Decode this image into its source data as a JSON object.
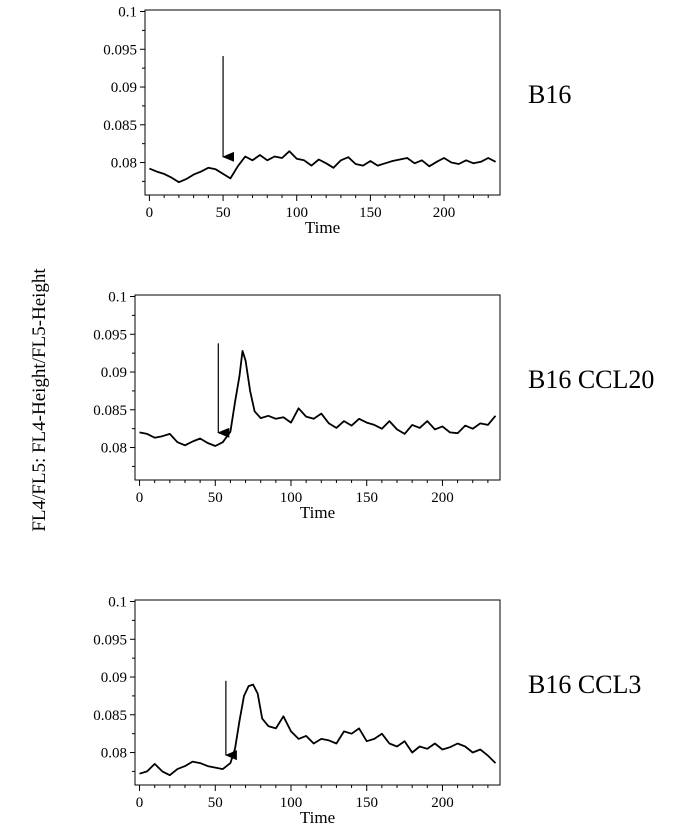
{
  "ylabel": "FL4/FL5: FL4-Height/FL5-Height",
  "line_color": "#000000",
  "chart_data": [
    {
      "type": "line",
      "panel_label": "B16",
      "xlabel": "Time",
      "ylabel": "FL4/FL5: FL4-Height/FL5-Height",
      "xlim": [
        -3,
        238
      ],
      "ylim": [
        0.0757,
        0.1002
      ],
      "xticks": [
        0,
        50,
        100,
        150,
        200
      ],
      "yticks": [
        0.08,
        0.085,
        0.09,
        0.095,
        0.1
      ],
      "ytick_labels": [
        "0.08",
        "0.085",
        "0.09",
        "0.095",
        "0.1"
      ],
      "grid": false,
      "arrow": {
        "x": 50,
        "y_top": 0.0941,
        "y_tip": 0.0793
      },
      "x": [
        0,
        5,
        10,
        15,
        20,
        25,
        30,
        35,
        40,
        45,
        50,
        55,
        60,
        65,
        70,
        75,
        80,
        85,
        90,
        95,
        100,
        105,
        110,
        115,
        120,
        125,
        130,
        135,
        140,
        145,
        150,
        155,
        160,
        165,
        170,
        175,
        180,
        185,
        190,
        195,
        200,
        205,
        210,
        215,
        220,
        225,
        230,
        235
      ],
      "y": [
        0.0792,
        0.0788,
        0.0785,
        0.078,
        0.0774,
        0.0778,
        0.0784,
        0.0788,
        0.0793,
        0.0791,
        0.0785,
        0.0779,
        0.0795,
        0.0808,
        0.0803,
        0.081,
        0.0803,
        0.0808,
        0.0806,
        0.0815,
        0.0805,
        0.0803,
        0.0796,
        0.0804,
        0.0799,
        0.0793,
        0.0803,
        0.0807,
        0.0798,
        0.0796,
        0.0802,
        0.0796,
        0.0799,
        0.0802,
        0.0804,
        0.0806,
        0.0799,
        0.0803,
        0.0795,
        0.0801,
        0.0806,
        0.08,
        0.0798,
        0.0803,
        0.0799,
        0.0801,
        0.0806,
        0.0801
      ]
    },
    {
      "type": "line",
      "panel_label": "B16 CCL20",
      "xlabel": "Time",
      "ylabel": "FL4/FL5: FL4-Height/FL5-Height",
      "xlim": [
        -3,
        238
      ],
      "ylim": [
        0.0757,
        0.1002
      ],
      "xticks": [
        0,
        50,
        100,
        150,
        200
      ],
      "yticks": [
        0.08,
        0.085,
        0.09,
        0.095,
        0.1
      ],
      "ytick_labels": [
        "0.08",
        "0.085",
        "0.09",
        "0.095",
        "0.1"
      ],
      "grid": false,
      "arrow": {
        "x": 52,
        "y_top": 0.0938,
        "y_tip": 0.0805
      },
      "x": [
        0,
        5,
        10,
        15,
        20,
        25,
        30,
        35,
        40,
        45,
        50,
        55,
        60,
        63,
        66,
        68,
        70,
        73,
        76,
        80,
        85,
        90,
        95,
        100,
        105,
        110,
        115,
        120,
        125,
        130,
        135,
        140,
        145,
        150,
        155,
        160,
        165,
        170,
        175,
        180,
        185,
        190,
        195,
        200,
        205,
        210,
        215,
        220,
        225,
        230,
        235
      ],
      "y": [
        0.082,
        0.0818,
        0.0813,
        0.0815,
        0.0818,
        0.0807,
        0.0803,
        0.0808,
        0.0812,
        0.0806,
        0.0802,
        0.0807,
        0.0821,
        0.086,
        0.0895,
        0.0928,
        0.0915,
        0.0875,
        0.0848,
        0.0839,
        0.0842,
        0.0838,
        0.084,
        0.0833,
        0.0852,
        0.0841,
        0.0838,
        0.0845,
        0.0832,
        0.0826,
        0.0835,
        0.0829,
        0.0838,
        0.0833,
        0.083,
        0.0825,
        0.0835,
        0.0824,
        0.0818,
        0.083,
        0.0826,
        0.0835,
        0.0824,
        0.0828,
        0.082,
        0.0819,
        0.0829,
        0.0825,
        0.0832,
        0.083,
        0.0842
      ]
    },
    {
      "type": "line",
      "panel_label": "B16 CCL3",
      "xlabel": "Time",
      "ylabel": "FL4/FL5: FL4-Height/FL5-Height",
      "xlim": [
        -3,
        238
      ],
      "ylim": [
        0.0757,
        0.1002
      ],
      "xticks": [
        0,
        50,
        100,
        150,
        200
      ],
      "yticks": [
        0.08,
        0.085,
        0.09,
        0.095,
        0.1
      ],
      "ytick_labels": [
        "0.08",
        "0.085",
        "0.09",
        "0.095",
        "0.1"
      ],
      "grid": false,
      "arrow": {
        "x": 57,
        "y_top": 0.0895,
        "y_tip": 0.0782
      },
      "x": [
        0,
        5,
        10,
        15,
        20,
        25,
        30,
        35,
        40,
        45,
        50,
        55,
        60,
        63,
        66,
        69,
        72,
        75,
        78,
        81,
        85,
        90,
        95,
        100,
        105,
        110,
        115,
        120,
        125,
        130,
        135,
        140,
        145,
        150,
        155,
        160,
        165,
        170,
        175,
        180,
        185,
        190,
        195,
        200,
        205,
        210,
        215,
        220,
        225,
        230,
        235
      ],
      "y": [
        0.0772,
        0.0775,
        0.0785,
        0.0775,
        0.077,
        0.0778,
        0.0782,
        0.0788,
        0.0786,
        0.0782,
        0.078,
        0.0778,
        0.0786,
        0.0805,
        0.0842,
        0.0875,
        0.0888,
        0.089,
        0.0878,
        0.0845,
        0.0835,
        0.0832,
        0.0848,
        0.0828,
        0.0818,
        0.0822,
        0.0812,
        0.0818,
        0.0816,
        0.0812,
        0.0828,
        0.0825,
        0.0832,
        0.0815,
        0.0818,
        0.0825,
        0.0812,
        0.0808,
        0.0815,
        0.08,
        0.0808,
        0.0805,
        0.0812,
        0.0804,
        0.0807,
        0.0812,
        0.0808,
        0.08,
        0.0804,
        0.0796,
        0.0786
      ]
    }
  ]
}
